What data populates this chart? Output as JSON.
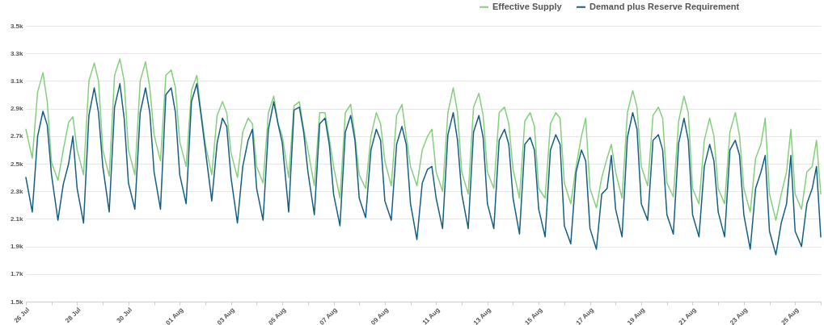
{
  "chart_data": {
    "type": "line",
    "x": [
      "--07-26T00:00",
      "--07-26T06:00",
      "--07-26T11:00",
      "--07-26T16:00",
      "--07-26T20:00",
      "--07-27T00:00",
      "--07-27T06:00",
      "--07-27T11:00",
      "--07-27T16:00",
      "--07-27T20:00",
      "--07-28T00:00",
      "--07-28T06:00",
      "--07-28T11:00",
      "--07-28T16:00",
      "--07-28T20:00",
      "--07-29T00:00",
      "--07-29T06:00",
      "--07-29T11:00",
      "--07-29T16:00",
      "--07-29T20:00",
      "--07-30T00:00",
      "--07-30T06:00",
      "--07-30T11:00",
      "--07-30T16:00",
      "--07-30T20:00",
      "--07-31T00:00",
      "--07-31T06:00",
      "--07-31T11:00",
      "--07-31T16:00",
      "--07-31T20:00",
      "--08-01T00:00",
      "--08-01T06:00",
      "--08-01T11:00",
      "--08-01T16:00",
      "--08-01T20:00",
      "--08-02T00:00",
      "--08-02T06:00",
      "--08-02T11:00",
      "--08-02T16:00",
      "--08-02T20:00",
      "--08-03T00:00",
      "--08-03T06:00",
      "--08-03T11:00",
      "--08-03T16:00",
      "--08-03T20:00",
      "--08-04T00:00",
      "--08-04T06:00",
      "--08-04T11:00",
      "--08-04T16:00",
      "--08-04T20:00",
      "--08-05T00:00",
      "--08-05T06:00",
      "--08-05T11:00",
      "--08-05T16:00",
      "--08-05T20:00",
      "--08-06T00:00",
      "--08-06T06:00",
      "--08-06T11:00",
      "--08-06T16:00",
      "--08-06T20:00",
      "--08-07T00:00",
      "--08-07T06:00",
      "--08-07T11:00",
      "--08-07T16:00",
      "--08-07T20:00",
      "--08-08T00:00",
      "--08-08T06:00",
      "--08-08T11:00",
      "--08-08T16:00",
      "--08-08T20:00",
      "--08-09T00:00",
      "--08-09T06:00",
      "--08-09T11:00",
      "--08-09T16:00",
      "--08-09T20:00",
      "--08-10T00:00",
      "--08-10T06:00",
      "--08-10T11:00",
      "--08-10T16:00",
      "--08-10T20:00",
      "--08-11T00:00",
      "--08-11T06:00",
      "--08-11T11:00",
      "--08-11T16:00",
      "--08-11T20:00",
      "--08-12T00:00",
      "--08-12T06:00",
      "--08-12T11:00",
      "--08-12T16:00",
      "--08-12T20:00",
      "--08-13T00:00",
      "--08-13T06:00",
      "--08-13T11:00",
      "--08-13T16:00",
      "--08-13T20:00",
      "--08-14T00:00",
      "--08-14T06:00",
      "--08-14T11:00",
      "--08-14T16:00",
      "--08-14T20:00",
      "--08-15T00:00",
      "--08-15T06:00",
      "--08-15T11:00",
      "--08-15T16:00",
      "--08-15T20:00",
      "--08-16T00:00",
      "--08-16T06:00",
      "--08-16T11:00",
      "--08-16T16:00",
      "--08-16T20:00",
      "--08-17T00:00",
      "--08-17T06:00",
      "--08-17T11:00",
      "--08-17T16:00",
      "--08-17T20:00",
      "--08-18T00:00",
      "--08-18T06:00",
      "--08-18T11:00",
      "--08-18T16:00",
      "--08-18T20:00",
      "--08-19T00:00",
      "--08-19T06:00",
      "--08-19T11:00",
      "--08-19T16:00",
      "--08-19T20:00",
      "--08-20T00:00",
      "--08-20T06:00",
      "--08-20T11:00",
      "--08-20T16:00",
      "--08-20T20:00",
      "--08-21T00:00",
      "--08-21T06:00",
      "--08-21T11:00",
      "--08-21T16:00",
      "--08-21T20:00",
      "--08-22T00:00",
      "--08-22T06:00",
      "--08-22T11:00",
      "--08-22T16:00",
      "--08-22T20:00",
      "--08-23T00:00",
      "--08-23T06:00",
      "--08-23T11:00",
      "--08-23T16:00",
      "--08-23T20:00",
      "--08-24T00:00",
      "--08-24T06:00",
      "--08-24T11:00",
      "--08-24T16:00",
      "--08-24T20:00",
      "--08-25T00:00",
      "--08-25T06:00",
      "--08-25T11:00",
      "--08-25T16:00",
      "--08-25T20:00",
      "--08-26T00:00"
    ],
    "series": [
      {
        "name": "Effective Supply",
        "color": "#86cf7e",
        "values": [
          2750,
          2540,
          3020,
          3160,
          2950,
          2510,
          2380,
          2600,
          2800,
          2840,
          2600,
          2420,
          3100,
          3230,
          3100,
          2600,
          2410,
          3140,
          3260,
          3100,
          2600,
          2420,
          3100,
          3240,
          3050,
          2710,
          2520,
          3140,
          3180,
          3050,
          2660,
          2480,
          3030,
          3140,
          2870,
          2640,
          2420,
          2850,
          2950,
          2870,
          2580,
          2400,
          2730,
          2830,
          2790,
          2480,
          2360,
          2870,
          2990,
          2790,
          2700,
          2400,
          2920,
          2950,
          2750,
          2600,
          2340,
          2870,
          2870,
          2680,
          2480,
          2250,
          2870,
          2930,
          2700,
          2420,
          2320,
          2700,
          2870,
          2790,
          2520,
          2340,
          2850,
          2930,
          2700,
          2480,
          2340,
          2600,
          2700,
          2750,
          2440,
          2300,
          2870,
          3050,
          2870,
          2440,
          2280,
          2910,
          3010,
          2850,
          2440,
          2320,
          2870,
          2910,
          2790,
          2460,
          2250,
          2810,
          2870,
          2770,
          2320,
          2250,
          2790,
          2870,
          2830,
          2360,
          2210,
          2480,
          2700,
          2830,
          2320,
          2180,
          2400,
          2540,
          2640,
          2440,
          2250,
          2870,
          3030,
          2910,
          2480,
          2340,
          2850,
          2910,
          2830,
          2360,
          2260,
          2810,
          2990,
          2870,
          2320,
          2210,
          2670,
          2830,
          2700,
          2320,
          2210,
          2730,
          2870,
          2700,
          2320,
          2150,
          2540,
          2640,
          2830,
          2280,
          2090,
          2280,
          2440,
          2750,
          2280,
          2170,
          2440,
          2480,
          2670,
          2280
        ]
      },
      {
        "name": "Demand plus Reserve Requirement",
        "color": "#155f82",
        "values": [
          2400,
          2150,
          2700,
          2880,
          2780,
          2420,
          2090,
          2350,
          2500,
          2700,
          2320,
          2070,
          2850,
          3050,
          2870,
          2480,
          2150,
          2910,
          3080,
          2830,
          2360,
          2170,
          2870,
          3050,
          2870,
          2440,
          2170,
          3000,
          3050,
          2870,
          2420,
          2210,
          2950,
          3080,
          2850,
          2600,
          2230,
          2650,
          2830,
          2770,
          2400,
          2070,
          2480,
          2670,
          2750,
          2320,
          2090,
          2750,
          2950,
          2790,
          2650,
          2150,
          2890,
          2910,
          2730,
          2440,
          2130,
          2790,
          2830,
          2640,
          2280,
          2050,
          2730,
          2850,
          2670,
          2250,
          2110,
          2600,
          2750,
          2670,
          2230,
          2090,
          2640,
          2770,
          2640,
          2210,
          1950,
          2360,
          2460,
          2480,
          2250,
          2030,
          2710,
          2870,
          2670,
          2280,
          2030,
          2730,
          2850,
          2690,
          2210,
          2030,
          2670,
          2750,
          2640,
          2250,
          1990,
          2640,
          2690,
          2600,
          2170,
          1970,
          2600,
          2710,
          2640,
          2050,
          1920,
          2440,
          2600,
          2520,
          2030,
          1880,
          2280,
          2320,
          2560,
          2170,
          1970,
          2690,
          2870,
          2750,
          2210,
          2090,
          2670,
          2710,
          2600,
          2130,
          1990,
          2650,
          2830,
          2670,
          2130,
          1970,
          2480,
          2640,
          2520,
          2150,
          1970,
          2600,
          2670,
          2560,
          2130,
          1880,
          2320,
          2440,
          2560,
          2010,
          1840,
          2070,
          2210,
          2560,
          2010,
          1900,
          2210,
          2320,
          2480,
          1970
        ]
      }
    ],
    "xlim": [
      "--07-26T00:00",
      "--08-26T00:00"
    ],
    "xticks": [
      {
        "value": "--07-26",
        "label": "26 Jul"
      },
      {
        "value": "--07-27",
        "label": null
      },
      {
        "value": "--07-28",
        "label": "28 Jul"
      },
      {
        "value": "--07-29",
        "label": null
      },
      {
        "value": "--07-30",
        "label": "30 Jul"
      },
      {
        "value": "--07-31",
        "label": null
      },
      {
        "value": "--08-01",
        "label": "01 Aug"
      },
      {
        "value": "--08-02",
        "label": null
      },
      {
        "value": "--08-03",
        "label": "03 Aug"
      },
      {
        "value": "--08-04",
        "label": null
      },
      {
        "value": "--08-05",
        "label": "05 Aug"
      },
      {
        "value": "--08-06",
        "label": null
      },
      {
        "value": "--08-07",
        "label": "07 Aug"
      },
      {
        "value": "--08-08",
        "label": null
      },
      {
        "value": "--08-09",
        "label": "09 Aug"
      },
      {
        "value": "--08-10",
        "label": null
      },
      {
        "value": "--08-11",
        "label": "11 Aug"
      },
      {
        "value": "--08-12",
        "label": null
      },
      {
        "value": "--08-13",
        "label": "13 Aug"
      },
      {
        "value": "--08-14",
        "label": null
      },
      {
        "value": "--08-15",
        "label": "15 Aug"
      },
      {
        "value": "--08-16",
        "label": null
      },
      {
        "value": "--08-17",
        "label": "17 Aug"
      },
      {
        "value": "--08-18",
        "label": null
      },
      {
        "value": "--08-19",
        "label": "19 Aug"
      },
      {
        "value": "--08-20",
        "label": null
      },
      {
        "value": "--08-21",
        "label": "21 Aug"
      },
      {
        "value": "--08-22",
        "label": null
      },
      {
        "value": "--08-23",
        "label": "23 Aug"
      },
      {
        "value": "--08-24",
        "label": null
      },
      {
        "value": "--08-25",
        "label": "25 Aug"
      },
      {
        "value": "--08-26",
        "label": null
      }
    ],
    "ylim": [
      1500,
      3500
    ],
    "yticks": [
      {
        "value": 1500,
        "label": "1.5k"
      },
      {
        "value": 1700,
        "label": "1.7k"
      },
      {
        "value": 1900,
        "label": "1.9k"
      },
      {
        "value": 2100,
        "label": "2.1k"
      },
      {
        "value": 2300,
        "label": "2.3k"
      },
      {
        "value": 2500,
        "label": "2.5k"
      },
      {
        "value": 2700,
        "label": "2.7k"
      },
      {
        "value": 2900,
        "label": "2.9k"
      },
      {
        "value": 3100,
        "label": "3.1k"
      },
      {
        "value": 3300,
        "label": "3.3k"
      },
      {
        "value": 3500,
        "label": "3.5k"
      }
    ],
    "grid": "y",
    "legend": "top right"
  }
}
